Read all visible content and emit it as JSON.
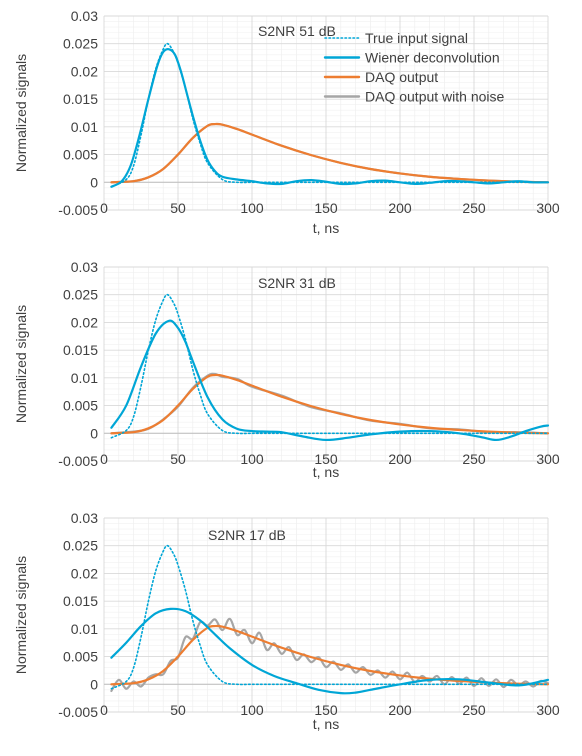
{
  "colors": {
    "true_input": "#00a6d6",
    "wiener": "#00a6d6",
    "daq": "#ed7d31",
    "daq_noise": "#a6a6a6",
    "grid": "#d9d9d9",
    "axis": "#bfbfbf",
    "text": "#404040"
  },
  "chart_data": [
    {
      "type": "line",
      "annotation": "S2NR 51 dB",
      "xlabel": "t, ns",
      "ylabel": "Normalized signals",
      "xlim": [
        0,
        300
      ],
      "ylim": [
        -0.005,
        0.03
      ],
      "xticks": [
        0,
        50,
        100,
        150,
        200,
        250,
        300
      ],
      "xtick_labels": [
        "0",
        "50",
        "100",
        "150",
        "200",
        "250",
        "300"
      ],
      "yticks": [
        -0.005,
        0,
        0.005,
        0.01,
        0.015,
        0.02,
        0.025,
        0.03
      ],
      "ytick_labels": [
        "-0.005",
        "0",
        "0.005",
        "0.01",
        "0.015",
        "0.02",
        "0.025",
        "0.03"
      ],
      "grid": true,
      "legend": {
        "position": "top-right",
        "entries": [
          "True input signal",
          "Wiener deconvolution",
          "DAQ output",
          "DAQ output with noise"
        ]
      },
      "series": [
        {
          "name": "True input signal",
          "style": "dotted",
          "color": "#00a6d6",
          "x": [
            5,
            15,
            20,
            25,
            30,
            35,
            40,
            43,
            47,
            50,
            55,
            60,
            65,
            70,
            80,
            90,
            100,
            120,
            150,
            200,
            250,
            300
          ],
          "y": [
            -0.0008,
            0.0005,
            0.003,
            0.0085,
            0.015,
            0.0205,
            0.024,
            0.025,
            0.0235,
            0.0215,
            0.017,
            0.0115,
            0.007,
            0.0035,
            0.0005,
            0,
            0,
            0,
            0,
            0,
            0,
            0
          ]
        },
        {
          "name": "Wiener deconvolution",
          "style": "solid",
          "color": "#00a6d6",
          "x": [
            5,
            12,
            18,
            24,
            30,
            36,
            40,
            44,
            48,
            52,
            56,
            60,
            65,
            70,
            75,
            80,
            90,
            100,
            110,
            120,
            130,
            140,
            150,
            160,
            170,
            180,
            190,
            200,
            210,
            220,
            230,
            240,
            250,
            260,
            270,
            280,
            290,
            300
          ],
          "y": [
            -0.0008,
            0.0002,
            0.003,
            0.0085,
            0.015,
            0.021,
            0.0235,
            0.024,
            0.023,
            0.02,
            0.016,
            0.012,
            0.0075,
            0.004,
            0.002,
            0.001,
            0.0005,
            0.0002,
            -0.0002,
            -0.0003,
            0.0002,
            0.0004,
            0.0001,
            -0.0003,
            -0.0002,
            0.0002,
            0.0003,
            0,
            -0.0003,
            -0.0001,
            0.0002,
            0.0002,
            0,
            -0.0002,
            0,
            0.0002,
            0,
            0
          ]
        },
        {
          "name": "DAQ output",
          "style": "solid",
          "color": "#ed7d31",
          "x": [
            5,
            20,
            30,
            40,
            50,
            60,
            70,
            75,
            80,
            90,
            100,
            120,
            140,
            160,
            180,
            200,
            220,
            240,
            260,
            280,
            300
          ],
          "y": [
            0,
            0.0002,
            0.0009,
            0.0024,
            0.005,
            0.008,
            0.0102,
            0.0105,
            0.0104,
            0.0096,
            0.0086,
            0.0066,
            0.0049,
            0.0035,
            0.0024,
            0.0016,
            0.001,
            0.0006,
            0.0003,
            0.0001,
            0
          ]
        },
        {
          "name": "DAQ output with noise",
          "style": "solid",
          "color": "#a6a6a6",
          "x": [
            5,
            20,
            30,
            40,
            50,
            60,
            70,
            75,
            80,
            90,
            100,
            120,
            140,
            160,
            180,
            200,
            220,
            240,
            260,
            280,
            300
          ],
          "y": [
            0,
            0.0002,
            0.0009,
            0.0024,
            0.005,
            0.008,
            0.0102,
            0.0105,
            0.0104,
            0.0096,
            0.0086,
            0.0066,
            0.0049,
            0.0035,
            0.0024,
            0.0016,
            0.001,
            0.0006,
            0.0003,
            0.0001,
            0
          ]
        }
      ]
    },
    {
      "type": "line",
      "annotation": "S2NR 31 dB",
      "xlabel": "t, ns",
      "ylabel": "Normalized signals",
      "xlim": [
        0,
        300
      ],
      "ylim": [
        -0.005,
        0.03
      ],
      "xticks": [
        0,
        50,
        100,
        150,
        200,
        250,
        300
      ],
      "xtick_labels": [
        "0",
        "50",
        "100",
        "150",
        "200",
        "250",
        "300"
      ],
      "yticks": [
        -0.005,
        0,
        0.005,
        0.01,
        0.015,
        0.02,
        0.025,
        0.03
      ],
      "ytick_labels": [
        "-0.005",
        "0",
        "0.005",
        "0.01",
        "0.015",
        "0.02",
        "0.025",
        "0.03"
      ],
      "grid": true,
      "series": [
        {
          "name": "True input signal",
          "style": "dotted",
          "color": "#00a6d6",
          "x": [
            5,
            15,
            20,
            25,
            30,
            35,
            40,
            43,
            47,
            50,
            55,
            60,
            65,
            70,
            80,
            90,
            100,
            120,
            150,
            200,
            250,
            300
          ],
          "y": [
            -0.0008,
            0.0005,
            0.003,
            0.0085,
            0.015,
            0.0205,
            0.024,
            0.025,
            0.0235,
            0.0215,
            0.017,
            0.0115,
            0.007,
            0.0035,
            0.0005,
            0,
            0,
            0,
            0,
            0,
            0,
            0
          ]
        },
        {
          "name": "Wiener deconvolution",
          "style": "solid",
          "color": "#00a6d6",
          "x": [
            5,
            15,
            25,
            35,
            44,
            50,
            55,
            60,
            70,
            80,
            90,
            100,
            110,
            120,
            135,
            150,
            165,
            180,
            200,
            220,
            240,
            255,
            265,
            275,
            285,
            295,
            300
          ],
          "y": [
            0.001,
            0.005,
            0.012,
            0.018,
            0.0203,
            0.019,
            0.0165,
            0.013,
            0.0065,
            0.0025,
            0.0008,
            0.0004,
            0.0003,
            0.0002,
            -0.0006,
            -0.0012,
            -0.0008,
            -0.0002,
            0.0003,
            0.0004,
            0,
            -0.0007,
            -0.0012,
            -0.0006,
            0.0004,
            0.0012,
            0.0014
          ]
        },
        {
          "name": "DAQ output",
          "style": "solid",
          "color": "#ed7d31",
          "x": [
            5,
            20,
            30,
            40,
            50,
            60,
            70,
            75,
            80,
            90,
            100,
            120,
            140,
            160,
            180,
            200,
            220,
            240,
            260,
            280,
            300
          ],
          "y": [
            0,
            0.0002,
            0.0009,
            0.0024,
            0.005,
            0.008,
            0.0102,
            0.0105,
            0.0104,
            0.0096,
            0.0086,
            0.0066,
            0.0049,
            0.0035,
            0.0024,
            0.0016,
            0.001,
            0.0006,
            0.0003,
            0.0001,
            0
          ]
        },
        {
          "name": "DAQ output with noise",
          "style": "solid",
          "color": "#a6a6a6",
          "x": [
            5,
            20,
            30,
            40,
            50,
            60,
            70,
            75,
            80,
            90,
            100,
            120,
            140,
            160,
            180,
            200,
            220,
            240,
            260,
            280,
            300
          ],
          "y": [
            0,
            0.0003,
            0.0008,
            0.0025,
            0.0048,
            0.0082,
            0.0104,
            0.0107,
            0.0102,
            0.0098,
            0.0084,
            0.0068,
            0.0047,
            0.0036,
            0.0023,
            0.0017,
            0.0009,
            0.0007,
            0.0002,
            0.0002,
            0
          ]
        }
      ]
    },
    {
      "type": "line",
      "annotation": "S2NR 17 dB",
      "xlabel": "t, ns",
      "ylabel": "Normalized signals",
      "xlim": [
        0,
        300
      ],
      "ylim": [
        -0.005,
        0.03
      ],
      "xticks": [
        0,
        50,
        100,
        150,
        200,
        250,
        300
      ],
      "xtick_labels": [
        "0",
        "50",
        "100",
        "150",
        "200",
        "250",
        "300"
      ],
      "yticks": [
        -0.005,
        0,
        0.005,
        0.01,
        0.015,
        0.02,
        0.025,
        0.03
      ],
      "ytick_labels": [
        "-0.005",
        "0",
        "0.005",
        "0.01",
        "0.015",
        "0.02",
        "0.025",
        "0.03"
      ],
      "grid": true,
      "series": [
        {
          "name": "True input signal",
          "style": "dotted",
          "color": "#00a6d6",
          "x": [
            5,
            15,
            20,
            25,
            30,
            35,
            40,
            43,
            47,
            50,
            55,
            60,
            65,
            70,
            80,
            90,
            100,
            120,
            150,
            200,
            250,
            300
          ],
          "y": [
            -0.0008,
            0.0005,
            0.003,
            0.0085,
            0.015,
            0.0205,
            0.024,
            0.025,
            0.0235,
            0.0215,
            0.017,
            0.0115,
            0.007,
            0.0035,
            0.0005,
            0,
            0,
            0,
            0,
            0,
            0,
            0
          ]
        },
        {
          "name": "Wiener deconvolution",
          "style": "solid",
          "color": "#00a6d6",
          "x": [
            5,
            15,
            25,
            35,
            45,
            55,
            65,
            75,
            85,
            100,
            115,
            130,
            145,
            160,
            170,
            180,
            200,
            220,
            240,
            260,
            280,
            295,
            300
          ],
          "y": [
            0.0048,
            0.0075,
            0.0105,
            0.0128,
            0.0136,
            0.0132,
            0.0115,
            0.009,
            0.0065,
            0.0035,
            0.0015,
            0.0002,
            -0.001,
            -0.0016,
            -0.0015,
            -0.001,
            0,
            0.0008,
            0.0009,
            0.0003,
            -0.0002,
            0.0005,
            0.0008
          ]
        },
        {
          "name": "DAQ output",
          "style": "solid",
          "color": "#ed7d31",
          "x": [
            5,
            20,
            30,
            40,
            50,
            60,
            70,
            75,
            80,
            90,
            100,
            120,
            140,
            160,
            180,
            200,
            220,
            240,
            260,
            280,
            300
          ],
          "y": [
            0,
            0.0002,
            0.0009,
            0.0024,
            0.005,
            0.008,
            0.0102,
            0.0105,
            0.0104,
            0.0096,
            0.0086,
            0.0066,
            0.0049,
            0.0035,
            0.0024,
            0.0016,
            0.001,
            0.0006,
            0.0003,
            0.0001,
            0
          ]
        },
        {
          "name": "DAQ output with noise",
          "style": "solid",
          "color": "#a6a6a6",
          "x": [
            5,
            10,
            15,
            20,
            25,
            30,
            35,
            40,
            45,
            50,
            55,
            60,
            65,
            70,
            75,
            80,
            85,
            90,
            95,
            100,
            105,
            110,
            115,
            120,
            125,
            130,
            135,
            140,
            145,
            150,
            155,
            160,
            165,
            170,
            175,
            180,
            185,
            190,
            195,
            200,
            205,
            210,
            215,
            220,
            225,
            230,
            235,
            240,
            245,
            250,
            255,
            260,
            265,
            270,
            275,
            280,
            285,
            290,
            295,
            300
          ],
          "y": [
            -0.0012,
            0.0008,
            -0.0008,
            0.0005,
            -0.0004,
            0.0012,
            0.0018,
            0.0018,
            0.0042,
            0.0048,
            0.0085,
            0.0082,
            0.0112,
            0.0106,
            0.0117,
            0.0098,
            0.0118,
            0.0089,
            0.0098,
            0.0074,
            0.0093,
            0.0062,
            0.0074,
            0.0055,
            0.0067,
            0.0044,
            0.0054,
            0.004,
            0.0049,
            0.0031,
            0.0041,
            0.0026,
            0.0036,
            0.0021,
            0.0031,
            0.0017,
            0.0025,
            0.0012,
            0.0023,
            0.0009,
            0.0021,
            0.0004,
            0.0015,
            0.0005,
            0.0015,
            0.0,
            0.0013,
            0.0001,
            0.0012,
            -0.0003,
            0.0011,
            -0.0003,
            0.0009,
            -0.0005,
            0.0008,
            -0.0002,
            0.0005,
            -0.0004,
            0.0006,
            0.0002
          ]
        }
      ]
    }
  ]
}
